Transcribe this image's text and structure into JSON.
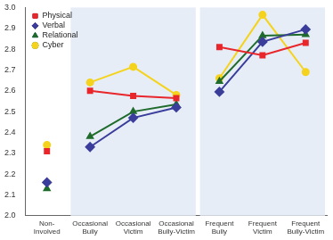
{
  "chart_data": {
    "type": "line",
    "categories": [
      "Non-Involved",
      "Occasional Bully",
      "Occasional Victim",
      "Occasional Bully-Victim",
      "Frequent Bully",
      "Frequent Victim",
      "Frequent Bully-Victim"
    ],
    "series": [
      {
        "name": "Physical",
        "color": "#e8262b",
        "marker": "square",
        "values": [
          2.31,
          2.6,
          2.575,
          2.565,
          2.81,
          2.77,
          2.83
        ]
      },
      {
        "name": "Verbal",
        "color": "#3b3d9b",
        "marker": "diamond",
        "values": [
          2.16,
          2.33,
          2.47,
          2.52,
          2.595,
          2.835,
          2.895
        ]
      },
      {
        "name": "Relational",
        "color": "#1e6b2c",
        "marker": "triangle",
        "values": [
          2.13,
          2.38,
          2.5,
          2.535,
          2.645,
          2.865,
          2.87
        ]
      },
      {
        "name": "Cyber",
        "color": "#f5d31d",
        "marker": "circle",
        "values": [
          2.34,
          2.64,
          2.715,
          2.58,
          2.66,
          2.965,
          2.69
        ]
      }
    ],
    "ylim": [
      2.0,
      3.0
    ],
    "yticks": [
      {
        "value": 2.0,
        "label": "2.0"
      },
      {
        "value": 2.1,
        "label": "2.1"
      },
      {
        "value": 2.2,
        "label": "2.2"
      },
      {
        "value": 2.3,
        "label": "2.3"
      },
      {
        "value": 2.4,
        "label": "2.4"
      },
      {
        "value": 2.5,
        "label": "2.5"
      },
      {
        "value": 2.6,
        "label": "2.6"
      },
      {
        "value": 2.7,
        "label": "2.7"
      },
      {
        "value": 2.8,
        "label": "2.8"
      },
      {
        "value": 2.9,
        "label": "2.9"
      },
      {
        "value": 3.0,
        "label": "3.0"
      }
    ],
    "grid": false,
    "legend": "top-left"
  }
}
